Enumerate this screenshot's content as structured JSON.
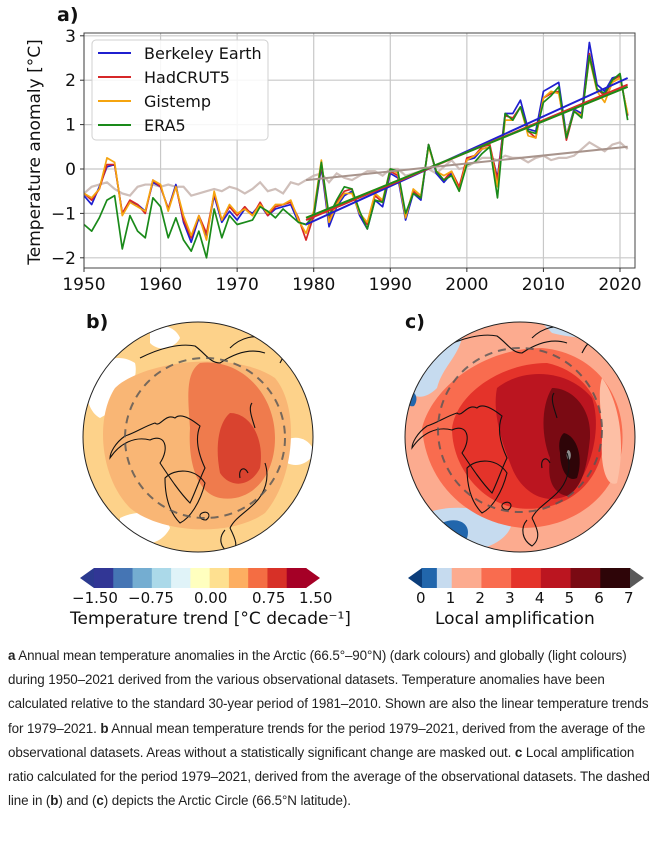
{
  "panels": {
    "a_label": "a)",
    "b_label": "b)",
    "c_label": "c)"
  },
  "chart_data": [
    {
      "type": "line",
      "panel": "a",
      "title": "",
      "xlabel": "",
      "ylabel": "Temperature anomaly [°C]",
      "xlim": [
        1950,
        2022
      ],
      "ylim": [
        -2.25,
        3.05
      ],
      "grid": true,
      "xticks": [
        1950,
        1960,
        1970,
        1980,
        1990,
        2000,
        2010,
        2020
      ],
      "yticks": [
        -2,
        -1,
        0,
        1,
        2,
        3
      ],
      "ytick_labels": [
        "−2",
        "−1",
        "0",
        "1",
        "2",
        "3"
      ],
      "legend": {
        "placement": "upper-left",
        "entries": [
          "Berkeley Earth",
          "HadCRUT5",
          "Gistemp",
          "ERA5"
        ]
      },
      "x": [
        1950,
        1951,
        1952,
        1953,
        1954,
        1955,
        1956,
        1957,
        1958,
        1959,
        1960,
        1961,
        1962,
        1963,
        1964,
        1965,
        1966,
        1967,
        1968,
        1969,
        1970,
        1971,
        1972,
        1973,
        1974,
        1975,
        1976,
        1977,
        1978,
        1979,
        1980,
        1981,
        1982,
        1983,
        1984,
        1985,
        1986,
        1987,
        1988,
        1989,
        1990,
        1991,
        1992,
        1993,
        1994,
        1995,
        1996,
        1997,
        1998,
        1999,
        2000,
        2001,
        2002,
        2003,
        2004,
        2005,
        2006,
        2007,
        2008,
        2009,
        2010,
        2011,
        2012,
        2013,
        2014,
        2015,
        2016,
        2017,
        2018,
        2019,
        2020,
        2021
      ],
      "series": [
        {
          "name": "Berkeley Earth",
          "color": "#1f1fcf",
          "kind": "arctic",
          "values": [
            -0.6,
            -0.8,
            -0.4,
            0.05,
            0.1,
            -1.0,
            -0.75,
            -0.8,
            -0.95,
            -0.3,
            -0.4,
            -0.9,
            -0.35,
            -1.2,
            -1.65,
            -1.1,
            -1.5,
            -0.6,
            -1.2,
            -0.95,
            -1.15,
            -0.9,
            -1.0,
            -0.8,
            -1.05,
            -0.9,
            -0.85,
            -0.8,
            -1.2,
            -1.25,
            -1.1,
            0.05,
            -1.3,
            -0.85,
            -0.6,
            -0.5,
            -1.05,
            -1.35,
            -0.7,
            -0.85,
            -0.1,
            -0.2,
            -1.15,
            -0.55,
            -0.7,
            0.55,
            -0.1,
            -0.3,
            -0.1,
            -0.45,
            0.2,
            0.25,
            0.45,
            0.5,
            -0.2,
            1.25,
            1.25,
            1.55,
            0.9,
            0.85,
            1.75,
            1.85,
            1.95,
            0.75,
            1.35,
            1.25,
            2.85,
            1.9,
            1.75,
            2.05,
            2.1,
            1.2
          ]
        },
        {
          "name": "HadCRUT5",
          "color": "#d62728",
          "kind": "arctic",
          "values": [
            -0.55,
            -0.7,
            -0.45,
            0.1,
            0.1,
            -1.0,
            -0.7,
            -0.8,
            -1.0,
            -0.25,
            -0.4,
            -0.9,
            -0.4,
            -1.15,
            -1.55,
            -1.05,
            -1.45,
            -0.55,
            -1.15,
            -0.85,
            -1.05,
            -0.85,
            -1.05,
            -0.75,
            -1.05,
            -0.85,
            -0.8,
            -0.75,
            -1.1,
            -1.6,
            -1.05,
            0.1,
            -1.15,
            -0.75,
            -0.5,
            -0.45,
            -1.0,
            -1.25,
            -0.6,
            -0.75,
            -0.05,
            -0.15,
            -1.05,
            -0.5,
            -0.65,
            0.55,
            -0.05,
            -0.25,
            -0.05,
            -0.4,
            0.25,
            0.3,
            0.5,
            0.55,
            -0.25,
            1.2,
            1.15,
            1.4,
            0.85,
            0.7,
            1.6,
            1.7,
            1.75,
            0.65,
            1.3,
            1.2,
            2.6,
            1.8,
            1.65,
            2.0,
            2.1,
            1.2
          ]
        },
        {
          "name": "Gistemp",
          "color": "#f5a40f",
          "kind": "arctic",
          "values": [
            -0.55,
            -0.65,
            -0.45,
            0.25,
            0.15,
            -1.05,
            -0.75,
            -0.85,
            -0.95,
            -0.25,
            -0.35,
            -0.95,
            -0.4,
            -1.05,
            -1.5,
            -1.05,
            -1.6,
            -0.5,
            -1.15,
            -0.8,
            -1.0,
            -0.9,
            -1.05,
            -0.8,
            -1.0,
            -0.8,
            -0.8,
            -0.7,
            -1.15,
            -1.45,
            -0.95,
            0.2,
            -1.2,
            -0.8,
            -0.55,
            -0.55,
            -1.0,
            -1.2,
            -0.55,
            -0.7,
            0.0,
            -0.1,
            -1.1,
            -0.45,
            -0.6,
            0.5,
            -0.05,
            -0.15,
            -0.05,
            -0.5,
            0.2,
            0.3,
            0.45,
            0.5,
            -0.4,
            1.1,
            1.1,
            1.4,
            0.75,
            0.7,
            1.6,
            1.75,
            1.7,
            0.75,
            1.3,
            1.2,
            2.5,
            1.75,
            1.5,
            1.95,
            2.05,
            1.25
          ]
        },
        {
          "name": "ERA5",
          "color": "#1a8a1a",
          "kind": "arctic",
          "values": [
            -1.25,
            -1.4,
            -1.1,
            -0.7,
            -0.6,
            -1.8,
            -1.05,
            -1.4,
            -1.55,
            -0.65,
            -0.85,
            -1.55,
            -1.1,
            -1.6,
            -1.85,
            -1.4,
            -2.0,
            -0.9,
            -1.55,
            -1.05,
            -1.25,
            -1.2,
            -1.15,
            -0.85,
            -0.95,
            -1.1,
            -0.9,
            -1.05,
            -1.2,
            -1.25,
            -1.05,
            0.15,
            -1.05,
            -0.7,
            -0.4,
            -0.45,
            -0.95,
            -1.35,
            -0.7,
            -0.75,
            0.0,
            -0.05,
            -1.0,
            -0.55,
            -0.65,
            0.55,
            -0.05,
            -0.25,
            -0.15,
            -0.5,
            0.1,
            0.15,
            0.35,
            0.5,
            -0.65,
            1.25,
            1.1,
            1.4,
            0.85,
            0.8,
            1.5,
            1.65,
            1.85,
            0.7,
            1.3,
            1.15,
            2.55,
            1.8,
            1.7,
            2.0,
            2.15,
            1.1
          ]
        },
        {
          "name": "Global (light colours)",
          "color": "#c7b4ae",
          "kind": "global",
          "values": [
            -0.55,
            -0.4,
            -0.35,
            -0.3,
            -0.45,
            -0.55,
            -0.6,
            -0.4,
            -0.35,
            -0.35,
            -0.4,
            -0.35,
            -0.4,
            -0.4,
            -0.6,
            -0.55,
            -0.5,
            -0.45,
            -0.5,
            -0.4,
            -0.45,
            -0.55,
            -0.45,
            -0.3,
            -0.5,
            -0.45,
            -0.55,
            -0.3,
            -0.35,
            -0.25,
            -0.15,
            -0.1,
            -0.3,
            -0.1,
            -0.2,
            -0.25,
            -0.15,
            -0.05,
            -0.05,
            -0.15,
            0.0,
            0.0,
            -0.15,
            -0.1,
            -0.05,
            0.0,
            -0.1,
            0.05,
            0.2,
            0.0,
            0.05,
            0.15,
            0.25,
            0.25,
            0.2,
            0.3,
            0.25,
            0.25,
            0.15,
            0.25,
            0.3,
            0.2,
            0.25,
            0.25,
            0.3,
            0.45,
            0.6,
            0.5,
            0.4,
            0.55,
            0.6,
            0.45
          ]
        }
      ],
      "trend_lines": [
        {
          "name": "Berkeley Earth trend 1979–2021",
          "color": "#1f1fcf",
          "x": [
            1979,
            2021
          ],
          "y": [
            -1.25,
            2.05
          ]
        },
        {
          "name": "HadCRUT5 trend 1979–2021",
          "color": "#d62728",
          "x": [
            1979,
            2021
          ],
          "y": [
            -1.15,
            1.9
          ]
        },
        {
          "name": "Gistemp trend 1979–2021",
          "color": "#f5a40f",
          "x": [
            1979,
            2021
          ],
          "y": [
            -1.1,
            1.85
          ]
        },
        {
          "name": "ERA5 trend 1979–2021",
          "color": "#1a8a1a",
          "x": [
            1979,
            2021
          ],
          "y": [
            -1.1,
            1.85
          ]
        },
        {
          "name": "Global trend 1979–2021",
          "color": "#a8948c",
          "x": [
            1979,
            2021
          ],
          "y": [
            -0.25,
            0.5
          ]
        }
      ]
    },
    {
      "type": "heatmap",
      "panel": "b",
      "projection": "north polar stereographic",
      "description": "Annual mean temperature trends 1979–2021 (average of observational datasets); non-significant areas masked (white)",
      "colorbar": {
        "title": "Temperature trend [°C decade⁻¹]",
        "tick_labels": [
          "−1.50",
          "−0.75",
          "0.00",
          "0.75",
          "1.50"
        ],
        "tick_values": [
          -1.5,
          -0.75,
          0.0,
          0.75,
          1.5
        ],
        "extend": "both",
        "colors": [
          "#313695",
          "#4575b4",
          "#74add1",
          "#abd9e9",
          "#e0f3f8",
          "#ffffbf",
          "#fee090",
          "#fdae61",
          "#f46d43",
          "#d73027",
          "#a50026"
        ],
        "extend_low_color": "#2b3a8f",
        "extend_high_color": "#a50026"
      },
      "dominant_colors": {
        "background": "#fdd28a",
        "mid": "#f9a868",
        "high": "#ea6a45",
        "max": "#d43a2c",
        "masked": "#ffffff"
      }
    },
    {
      "type": "heatmap",
      "panel": "c",
      "projection": "north polar stereographic",
      "description": "Local amplification ratio 1979–2021 (average of observational datasets)",
      "colorbar": {
        "title": "Local amplification",
        "tick_labels": [
          "0",
          "1",
          "2",
          "3",
          "4",
          "5",
          "6",
          "7"
        ],
        "tick_values": [
          0,
          1,
          2,
          3,
          4,
          5,
          6,
          7
        ],
        "extend": "both",
        "bins": [
          {
            "from": 0,
            "to": 0.5,
            "color": "#2166ac"
          },
          {
            "from": 0.5,
            "to": 1,
            "color": "#c6dbef"
          },
          {
            "from": 1,
            "to": 2,
            "color": "#fcab8f"
          },
          {
            "from": 2,
            "to": 3,
            "color": "#f96c4f"
          },
          {
            "from": 3,
            "to": 4,
            "color": "#e4332a"
          },
          {
            "from": 4,
            "to": 5,
            "color": "#bb1520"
          },
          {
            "from": 5,
            "to": 6,
            "color": "#7a0a13"
          },
          {
            "from": 6,
            "to": 7,
            "color": "#2e0508"
          }
        ],
        "extend_low_color": "#0b3d7a",
        "extend_high_color": "#595959"
      },
      "dominant_colors": {
        "background": "#fcab8f",
        "ring": "#f96c4f",
        "inner": "#e4332a",
        "core": "#bb1520",
        "hot": "#7a0a13",
        "max": "#2e0508",
        "low": "#c6dbef",
        "lowest": "#2166ac"
      }
    }
  ],
  "caption": {
    "parts": [
      {
        "bold": true,
        "text": "a"
      },
      {
        "bold": false,
        "text": " Annual mean temperature anomalies in the Arctic (66.5°–90°N) (dark colours) and globally (light colours) during 1950–2021 derived from the various observational datasets. Temperature anomalies have been calculated relative to the standard 30-year period of 1981–2010. Shown are also the linear temperature trends for 1979–2021. "
      },
      {
        "bold": true,
        "text": "b"
      },
      {
        "bold": false,
        "text": " Annual mean temperature trends for the period 1979–2021, derived from the average of the observational datasets. Areas without a statistically significant change are masked out. "
      },
      {
        "bold": true,
        "text": "c"
      },
      {
        "bold": false,
        "text": " Local amplification ratio calculated for the period 1979–2021, derived from the average of the observational datasets. The dashed line in ("
      },
      {
        "bold": true,
        "text": "b"
      },
      {
        "bold": false,
        "text": ") and ("
      },
      {
        "bold": true,
        "text": "c"
      },
      {
        "bold": false,
        "text": ") depicts the Arctic Circle (66.5°N latitude)."
      }
    ]
  }
}
